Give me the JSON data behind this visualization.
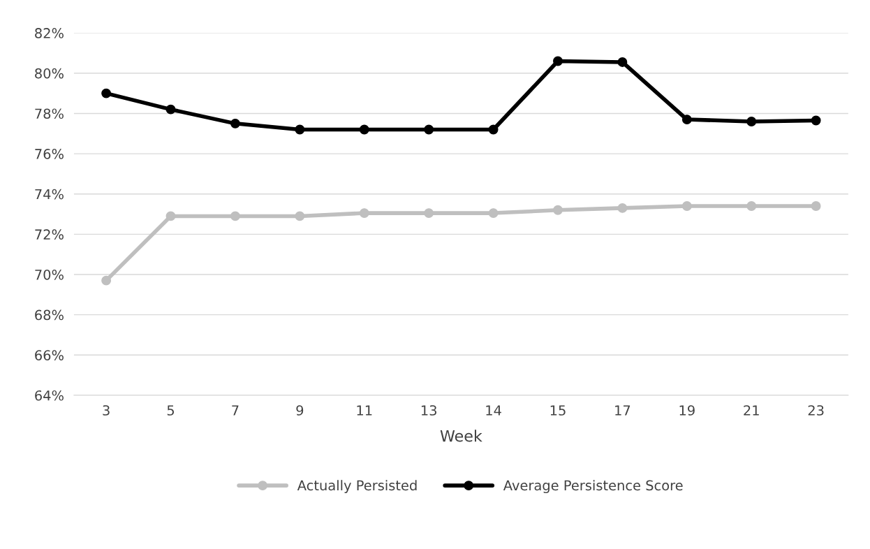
{
  "chart_data": {
    "type": "line",
    "xlabel": "Week",
    "categories": [
      "3",
      "5",
      "7",
      "9",
      "11",
      "13",
      "14",
      "15",
      "17",
      "19",
      "21",
      "23"
    ],
    "series": [
      {
        "name": "Actually Persisted",
        "color": "#bfbfbf",
        "values": [
          69.7,
          72.9,
          72.9,
          72.9,
          73.05,
          73.05,
          73.05,
          73.2,
          73.3,
          73.4,
          73.4,
          73.4
        ]
      },
      {
        "name": "Average Persistence Score",
        "color": "#000000",
        "values": [
          79.0,
          78.2,
          77.5,
          77.2,
          77.2,
          77.2,
          77.2,
          80.6,
          80.55,
          77.7,
          77.6,
          77.65
        ]
      }
    ],
    "ylim": [
      64,
      82
    ],
    "yticks": [
      {
        "value": 64,
        "label": "64%"
      },
      {
        "value": 66,
        "label": "66%"
      },
      {
        "value": 68,
        "label": "68%"
      },
      {
        "value": 70,
        "label": "70%"
      },
      {
        "value": 72,
        "label": "72%"
      },
      {
        "value": 74,
        "label": "74%"
      },
      {
        "value": 76,
        "label": "76%"
      },
      {
        "value": 78,
        "label": "78%"
      },
      {
        "value": 80,
        "label": "80%"
      },
      {
        "value": 82,
        "label": "82%"
      }
    ],
    "grid": "y",
    "legend": "bottom",
    "marker": "circle",
    "line_style": "solid"
  }
}
